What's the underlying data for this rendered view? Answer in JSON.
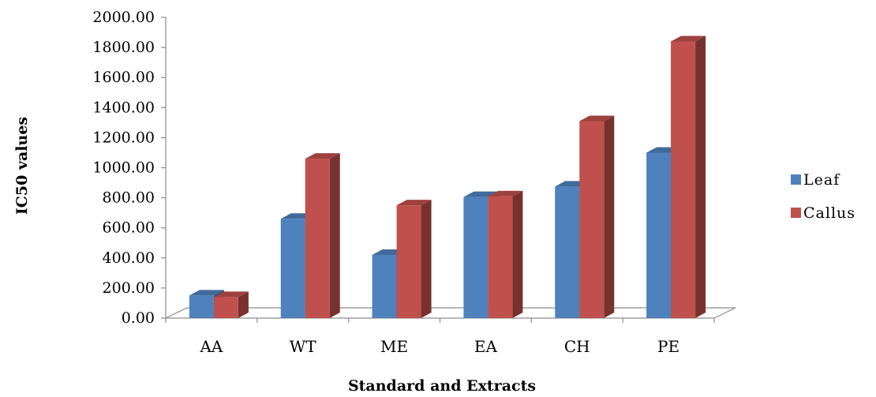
{
  "chart_data": {
    "type": "bar",
    "style": "3d-clustered-column",
    "categories": [
      "AA",
      "WT",
      "ME",
      "EA",
      "CH",
      "PE"
    ],
    "series": [
      {
        "name": "Leaf",
        "values": [
          150,
          660,
          420,
          805,
          875,
          1100
        ],
        "color": "#4F81BD"
      },
      {
        "name": "Callus",
        "values": [
          140,
          1060,
          750,
          810,
          1310,
          1840
        ],
        "color": "#C0504D"
      }
    ],
    "yticks": [
      "0.00",
      "200.00",
      "400.00",
      "600.00",
      "800.00",
      "1000.00",
      "1200.00",
      "1400.00",
      "1600.00",
      "1800.00",
      "2000.00"
    ],
    "ylim": [
      0,
      2000
    ],
    "xlabel": "Standard and Extracts",
    "ylabel": "IC50 values",
    "legend_position": "right",
    "grid": false
  }
}
